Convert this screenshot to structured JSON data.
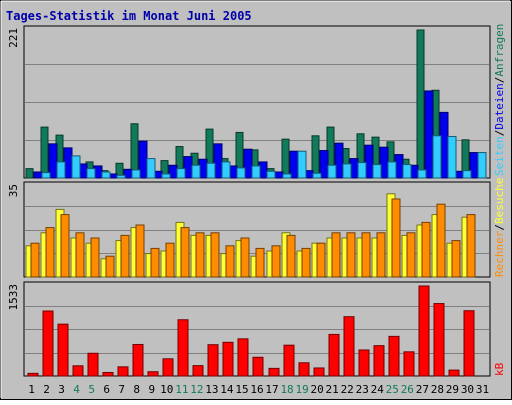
{
  "chart_data": [
    {
      "type": "bar",
      "panel": "top",
      "title": "Tages-Statistik im Monat Juni 2005",
      "y_max_label": "221",
      "ylim": [
        0,
        221
      ],
      "grid": true,
      "categories": [
        "1",
        "2",
        "3",
        "4",
        "5",
        "6",
        "7",
        "8",
        "9",
        "10",
        "11",
        "12",
        "13",
        "14",
        "15",
        "16",
        "17",
        "18",
        "19",
        "20",
        "21",
        "22",
        "23",
        "24",
        "25",
        "26",
        "27",
        "28",
        "29",
        "30",
        "31"
      ],
      "series": [
        {
          "name": "Anfragen",
          "color": "#117a5a",
          "values": [
            14,
            76,
            64,
            31,
            24,
            11,
            22,
            81,
            13,
            26,
            47,
            37,
            73,
            29,
            68,
            42,
            14,
            58,
            17,
            63,
            76,
            44,
            66,
            61,
            54,
            28,
            221,
            131,
            17,
            57,
            0
          ]
        },
        {
          "name": "Dateien",
          "color": "#0000ee",
          "values": [
            9,
            51,
            45,
            21,
            18,
            6,
            13,
            55,
            10,
            19,
            32,
            28,
            51,
            18,
            43,
            24,
            9,
            40,
            11,
            41,
            52,
            29,
            49,
            46,
            35,
            19,
            130,
            98,
            10,
            38,
            0
          ]
        },
        {
          "name": "Seiten",
          "color": "#33ccff",
          "values": [
            8,
            24,
            33,
            14,
            9,
            4,
            12,
            29,
            6,
            14,
            19,
            22,
            24,
            15,
            18,
            10,
            6,
            40,
            7,
            19,
            21,
            23,
            20,
            24,
            20,
            12,
            63,
            62,
            11,
            38,
            0
          ]
        }
      ]
    },
    {
      "type": "bar",
      "panel": "middle",
      "y_max_label": "35",
      "ylim": [
        0,
        35
      ],
      "grid": true,
      "categories": [
        "1",
        "2",
        "3",
        "4",
        "5",
        "6",
        "7",
        "8",
        "9",
        "10",
        "11",
        "12",
        "13",
        "14",
        "15",
        "16",
        "17",
        "18",
        "19",
        "20",
        "21",
        "22",
        "23",
        "24",
        "25",
        "26",
        "27",
        "28",
        "29",
        "30",
        "31"
      ],
      "series": [
        {
          "name": "Besuche",
          "color": "#ffff33",
          "values": [
            12,
            17,
            26,
            15,
            13,
            7,
            14,
            19,
            9,
            10,
            21,
            16,
            16,
            9,
            14,
            8,
            10,
            17,
            10,
            13,
            15,
            15,
            15,
            15,
            32,
            16,
            20,
            24,
            13,
            23,
            0
          ]
        },
        {
          "name": "Rechner",
          "color": "#ff8c00",
          "values": [
            13,
            19,
            24,
            17,
            15,
            8,
            16,
            20,
            11,
            13,
            19,
            17,
            17,
            12,
            15,
            11,
            12,
            16,
            11,
            13,
            17,
            17,
            17,
            17,
            30,
            17,
            21,
            28,
            14,
            24,
            0
          ]
        }
      ]
    },
    {
      "type": "bar",
      "panel": "bottom",
      "y_max_label": "1533",
      "ylim": [
        0,
        1533
      ],
      "grid": true,
      "categories": [
        "1",
        "2",
        "3",
        "4",
        "5",
        "6",
        "7",
        "8",
        "9",
        "10",
        "11",
        "12",
        "13",
        "14",
        "15",
        "16",
        "17",
        "18",
        "19",
        "20",
        "21",
        "22",
        "23",
        "24",
        "25",
        "26",
        "27",
        "28",
        "29",
        "30",
        "31"
      ],
      "series": [
        {
          "name": "kB",
          "color": "#ff0000",
          "values": [
            45,
            1107,
            883,
            174,
            387,
            60,
            156,
            537,
            73,
            293,
            958,
            177,
            533,
            574,
            633,
            319,
            130,
            525,
            225,
            137,
            708,
            1010,
            443,
            517,
            675,
            412,
            1533,
            1234,
            101,
            1112,
            0
          ]
        }
      ]
    }
  ],
  "legend_right": {
    "top": [
      "Anfragen",
      "/",
      "Dateien",
      "/",
      "Seiten"
    ],
    "middle": [
      "Besuche",
      "/",
      "Rechner"
    ],
    "bottom": [
      "kB"
    ]
  },
  "weekend_days": [
    "4",
    "5",
    "11",
    "12",
    "18",
    "19",
    "25",
    "26"
  ],
  "colors": {
    "background": "#c0c0c0",
    "panel": "#c0c0c0",
    "grid": "#808080",
    "title": "#0000aa",
    "day_label": "#000000",
    "weekend_label": "#117a5a"
  }
}
